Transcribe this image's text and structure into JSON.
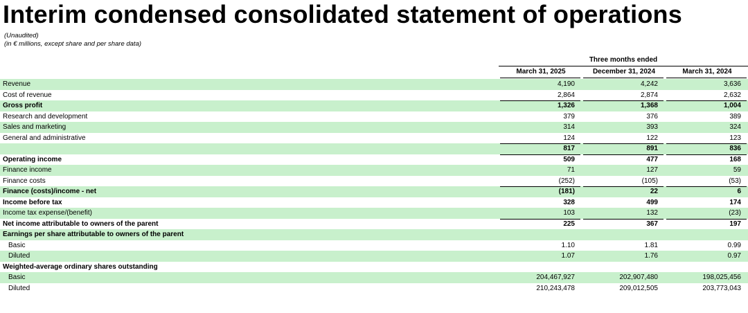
{
  "header": {
    "title": "Interim condensed consolidated statement of operations",
    "notes": [
      "(Unaudited)",
      "(in € millions, except share and per share data)"
    ]
  },
  "table": {
    "group_header": "Three months ended",
    "columns": [
      "March 31, 2025",
      "December 31, 2024",
      "March 31, 2024"
    ],
    "rows": [
      {
        "label": "Revenue",
        "cells": [
          "4,190",
          "4,242",
          "3,636"
        ]
      },
      {
        "label": "Cost of revenue",
        "cells": [
          "2,864",
          "2,874",
          "2,632"
        ]
      },
      {
        "label": "Gross profit",
        "cells": [
          "1,326",
          "1,368",
          "1,004"
        ]
      },
      {
        "label": "Research and development",
        "cells": [
          "379",
          "376",
          "389"
        ]
      },
      {
        "label": "Sales and marketing",
        "cells": [
          "314",
          "393",
          "324"
        ]
      },
      {
        "label": "General and administrative",
        "cells": [
          "124",
          "122",
          "123"
        ]
      },
      {
        "cells": [
          "817",
          "891",
          "836"
        ]
      },
      {
        "label": "Operating income",
        "cells": [
          "509",
          "477",
          "168"
        ]
      },
      {
        "label": "Finance income",
        "cells": [
          "71",
          "127",
          "59"
        ]
      },
      {
        "label": "Finance costs",
        "cells": [
          "(252)",
          "(105)",
          "(53)"
        ]
      },
      {
        "label": "Finance (costs)/income - net",
        "cells": [
          "(181)",
          "22",
          "6"
        ]
      },
      {
        "label": "Income before tax",
        "cells": [
          "328",
          "499",
          "174"
        ]
      },
      {
        "label": "Income tax expense/(benefit)",
        "cells": [
          "103",
          "132",
          "(23)"
        ]
      },
      {
        "label": "Net income attributable to owners of the parent",
        "cells": [
          "225",
          "367",
          "197"
        ]
      },
      {
        "label": "Earnings per share attributable to owners of the parent"
      },
      {
        "label": "Basic",
        "cells": [
          "1.10",
          "1.81",
          "0.99"
        ]
      },
      {
        "label": "Diluted",
        "cells": [
          "1.07",
          "1.76",
          "0.97"
        ]
      },
      {
        "label": "Weighted-average ordinary shares outstanding"
      },
      {
        "label": "Basic",
        "cells": [
          "204,467,927",
          "202,907,480",
          "198,025,456"
        ]
      },
      {
        "label": "Diluted",
        "cells": [
          "210,243,478",
          "209,012,505",
          "203,773,043"
        ]
      }
    ]
  }
}
